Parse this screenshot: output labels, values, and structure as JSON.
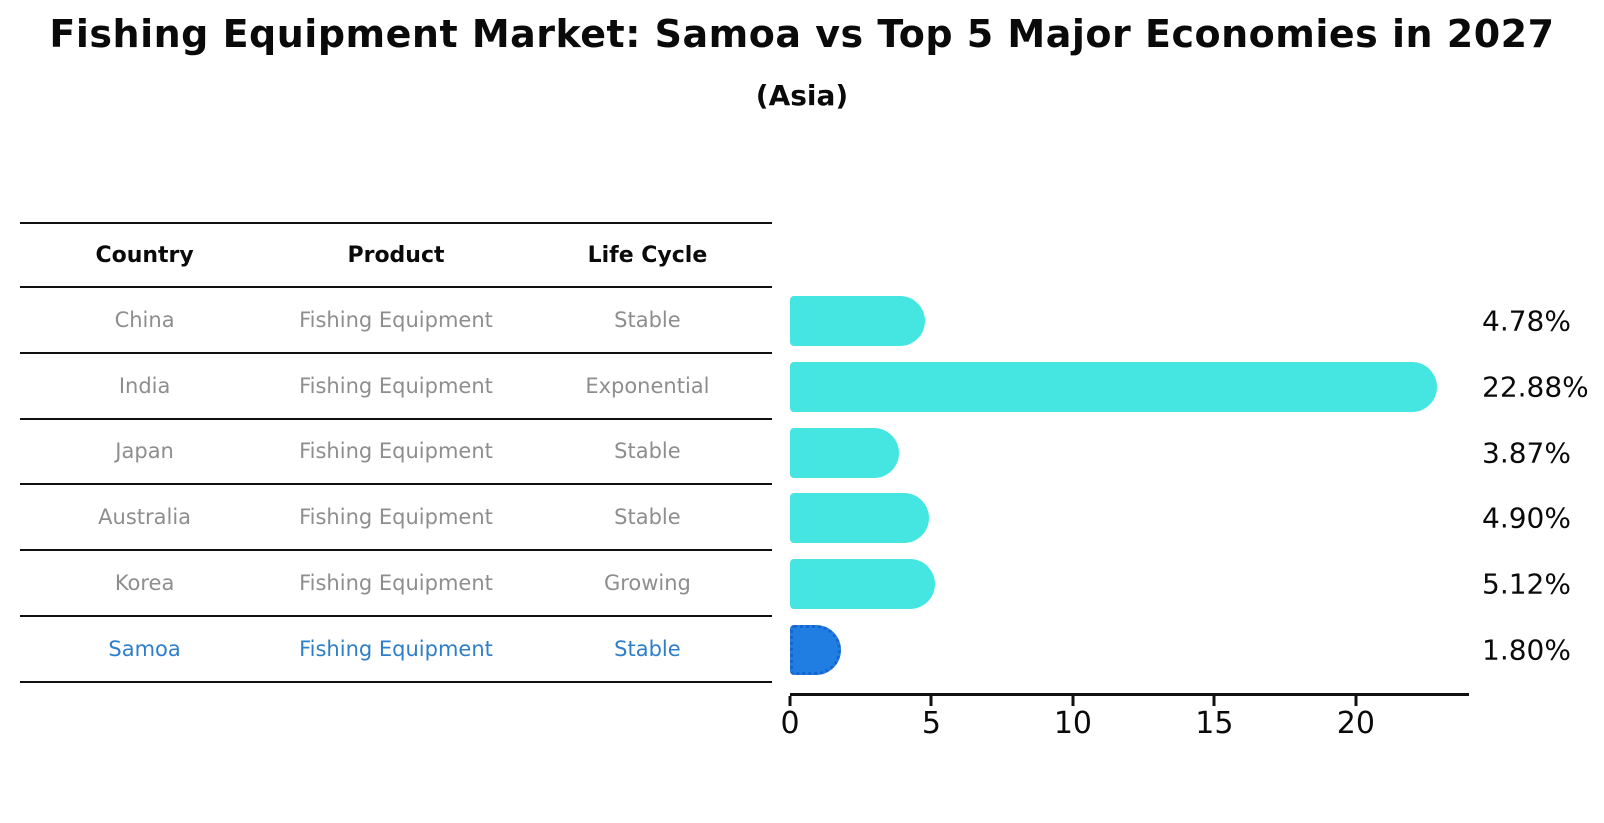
{
  "title": "Fishing Equipment Market: Samoa vs Top 5 Major Economies in 2027",
  "subtitle": "(Asia)",
  "table": {
    "columns": [
      "Country",
      "Product",
      "Life Cycle"
    ],
    "rows": [
      {
        "country": "China",
        "product": "Fishing Equipment",
        "life_cycle": "Stable"
      },
      {
        "country": "India",
        "product": "Fishing Equipment",
        "life_cycle": "Exponential"
      },
      {
        "country": "Japan",
        "product": "Fishing Equipment",
        "life_cycle": "Stable"
      },
      {
        "country": "Australia",
        "product": "Fishing Equipment",
        "life_cycle": "Stable"
      },
      {
        "country": "Korea",
        "product": "Fishing Equipment",
        "life_cycle": "Growing"
      },
      {
        "country": "Samoa",
        "product": "Fishing Equipment",
        "life_cycle": "Stable"
      }
    ],
    "highlight_row": "Samoa"
  },
  "chart_data": {
    "type": "bar",
    "orientation": "horizontal",
    "title": "Fishing Equipment Market: Samoa vs Top 5 Major Economies in 2027",
    "subtitle": "(Asia)",
    "categories": [
      "China",
      "India",
      "Japan",
      "Australia",
      "Korea",
      "Samoa"
    ],
    "values": [
      4.78,
      22.88,
      3.87,
      4.9,
      5.12,
      1.8
    ],
    "value_labels": [
      "4.78%",
      "22.88%",
      "3.87%",
      "4.90%",
      "5.12%",
      "1.80%"
    ],
    "xticks": [
      0,
      5,
      10,
      15,
      20
    ],
    "xlim": [
      0,
      24
    ],
    "xlabel": "",
    "ylabel": "",
    "grid": false,
    "legend": false,
    "bar_color": "#45e6e2",
    "highlight_color": "#207ee3",
    "highlight_border_color": "#1565cf",
    "highlight_index": 5,
    "highlight_text_color": "#2e7fc9"
  }
}
